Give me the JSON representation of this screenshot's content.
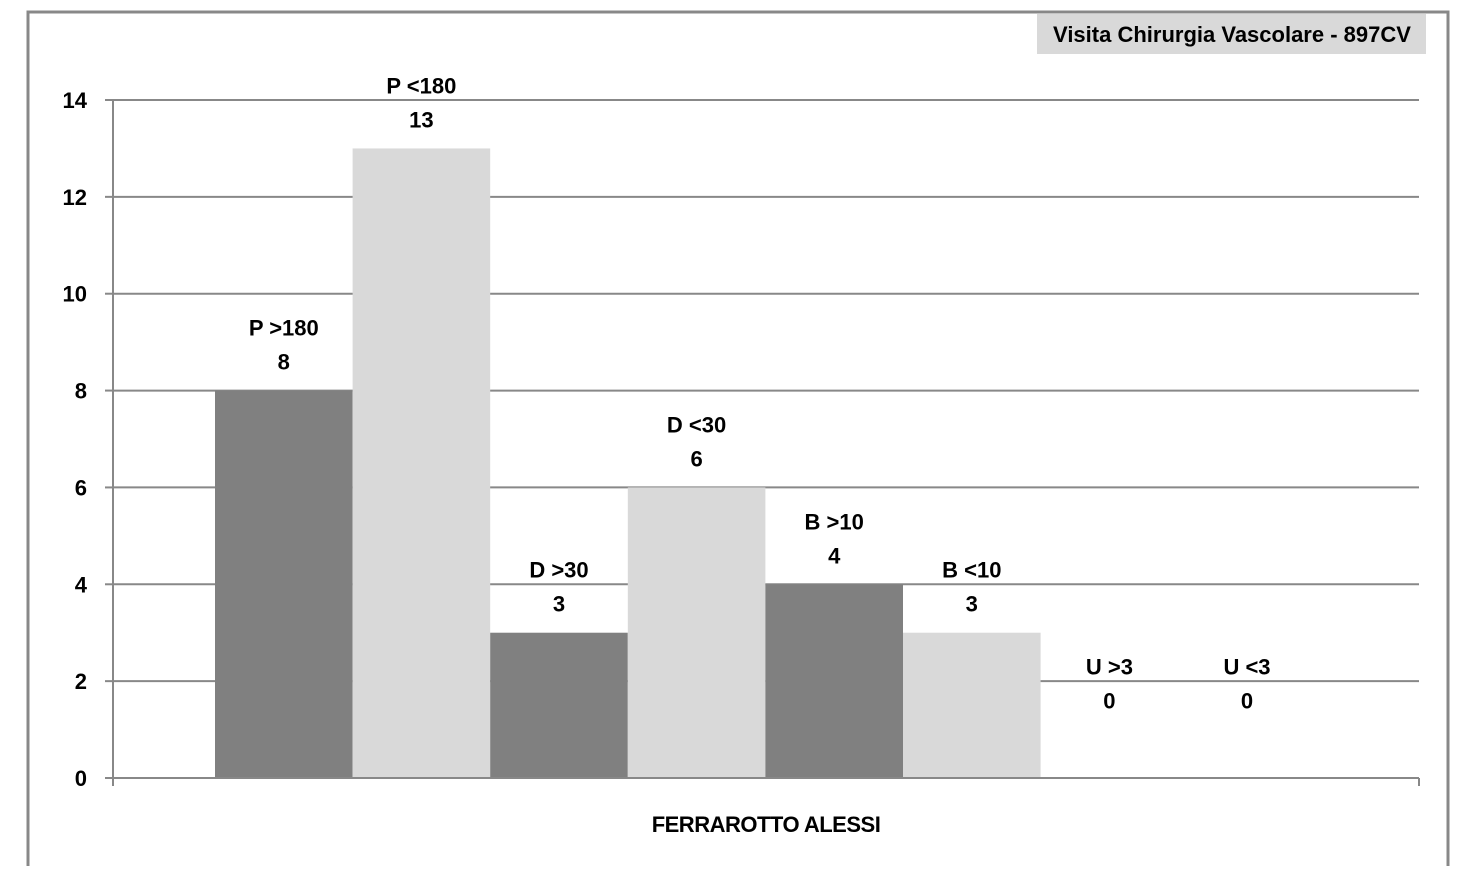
{
  "chart_data": {
    "type": "bar",
    "title": "Visita Chirurgia Vascolare - 897CV",
    "xlabel": "FERRAROTTO ALESSI",
    "ylabel": "",
    "ylim": [
      0,
      14
    ],
    "yticks": [
      0,
      2,
      4,
      6,
      8,
      10,
      12,
      14
    ],
    "grid": true,
    "categories": [
      "P >180",
      "P <180",
      "D >30",
      "D <30",
      "B >10",
      "B <10",
      "U >3",
      "U <3"
    ],
    "values": [
      8,
      13,
      3,
      6,
      4,
      3,
      0,
      0
    ],
    "bar_colors": [
      "#808080",
      "#d9d9d9",
      "#808080",
      "#d9d9d9",
      "#808080",
      "#d9d9d9",
      "#808080",
      "#d9d9d9"
    ]
  }
}
